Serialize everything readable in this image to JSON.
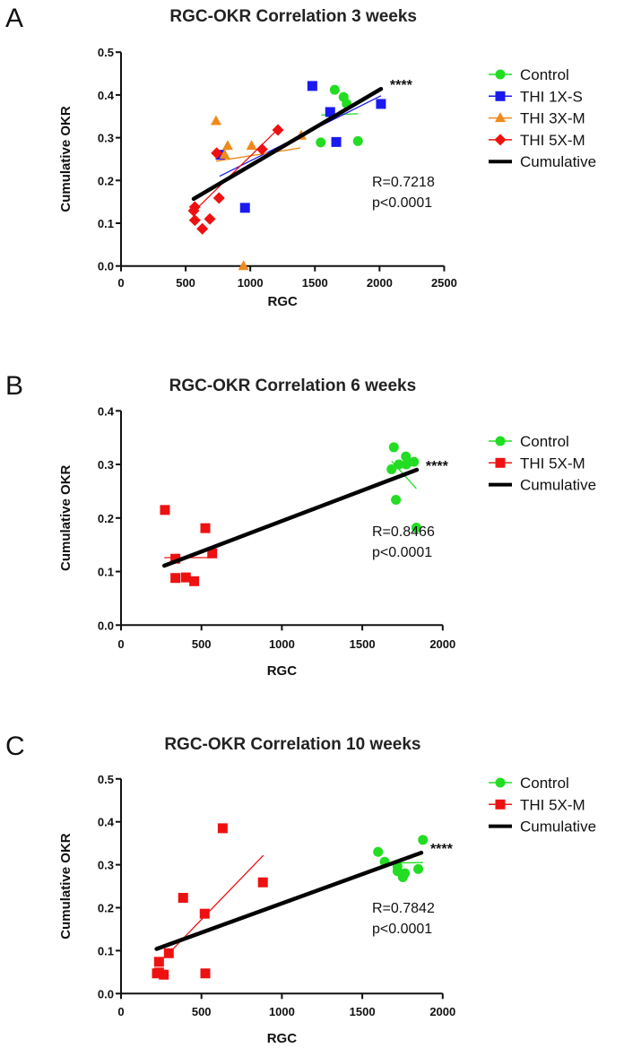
{
  "chart_data": [
    {
      "type": "scatter",
      "panel_label": "A",
      "title": "RGC-OKR Correlation 3 weeks",
      "xlabel": "RGC",
      "ylabel": "Cumulative OKR",
      "xlim": [
        0,
        2500
      ],
      "ylim": [
        0,
        0.5
      ],
      "xticks": [
        "0",
        "500",
        "1000",
        "1500",
        "2000",
        "2500"
      ],
      "yticks": [
        "0.0",
        "0.1",
        "0.2",
        "0.3",
        "0.4",
        "0.5"
      ],
      "legend_position": "right",
      "grid": false,
      "annotation_r": "R=0.7218",
      "annotation_p": "p<0.0001",
      "significance": "****",
      "series": [
        {
          "name": "Control",
          "color": "#22dd22",
          "marker": "circle",
          "points": [
            [
              1653,
              0.412
            ],
            [
              1722,
              0.395
            ],
            [
              1746,
              0.379
            ],
            [
              1545,
              0.289
            ],
            [
              1833,
              0.292
            ]
          ],
          "fit": [
            [
              1549,
              0.353
            ],
            [
              1833,
              0.356
            ]
          ]
        },
        {
          "name": "THI 1X-S",
          "color": "#1a1aee",
          "marker": "square",
          "points": [
            [
              1480,
              0.421
            ],
            [
              1618,
              0.36
            ],
            [
              2011,
              0.379
            ],
            [
              1665,
              0.29
            ],
            [
              959,
              0.136
            ],
            [
              770,
              0.26
            ]
          ],
          "fit": [
            [
              763,
              0.21
            ],
            [
              2011,
              0.398
            ]
          ]
        },
        {
          "name": "THI 3X-M",
          "color": "#f08a1c",
          "marker": "triangle",
          "points": [
            [
              735,
              0.339
            ],
            [
              825,
              0.281
            ],
            [
              1010,
              0.281
            ],
            [
              802,
              0.26
            ],
            [
              1394,
              0.305
            ],
            [
              948,
              0.0
            ]
          ],
          "fit": [
            [
              735,
              0.245
            ],
            [
              1387,
              0.276
            ]
          ]
        },
        {
          "name": "THI 5X-M",
          "color": "#ee1111",
          "marker": "diamond",
          "points": [
            [
              740,
              0.264
            ],
            [
              1091,
              0.273
            ],
            [
              1214,
              0.318
            ],
            [
              758,
              0.159
            ],
            [
              571,
              0.138
            ],
            [
              562,
              0.129
            ],
            [
              571,
              0.107
            ],
            [
              687,
              0.11
            ],
            [
              629,
              0.087
            ]
          ],
          "fit": [
            [
              571,
              0.13
            ],
            [
              1214,
              0.32
            ]
          ]
        }
      ],
      "cumulative": {
        "name": "Cumulative",
        "color": "#000000",
        "fit": [
          [
            562,
            0.157
          ],
          [
            2011,
            0.414
          ]
        ]
      }
    },
    {
      "type": "scatter",
      "panel_label": "B",
      "title": "RGC-OKR Correlation 6 weeks",
      "xlabel": "RGC",
      "ylabel": "Cumulative OKR",
      "xlim": [
        0,
        2000
      ],
      "ylim": [
        0,
        0.4
      ],
      "xticks": [
        "0",
        "500",
        "1000",
        "1500",
        "2000"
      ],
      "yticks": [
        "0.0",
        "0.1",
        "0.2",
        "0.3",
        "0.4"
      ],
      "legend_position": "right",
      "grid": false,
      "annotation_r": "R=0.8466",
      "annotation_p": "p<0.0001",
      "significance": "****",
      "series": [
        {
          "name": "Control",
          "color": "#22dd22",
          "marker": "circle",
          "points": [
            [
              1696,
              0.332
            ],
            [
              1771,
              0.315
            ],
            [
              1821,
              0.305
            ],
            [
              1728,
              0.3
            ],
            [
              1774,
              0.3
            ],
            [
              1682,
              0.291
            ],
            [
              1709,
              0.234
            ],
            [
              1836,
              0.182
            ]
          ],
          "fit": [
            [
              1682,
              0.306
            ],
            [
              1836,
              0.255
            ]
          ]
        },
        {
          "name": "THI 5X-M",
          "color": "#ee1111",
          "marker": "square",
          "points": [
            [
              273,
              0.215
            ],
            [
              524,
              0.181
            ],
            [
              567,
              0.134
            ],
            [
              338,
              0.124
            ],
            [
              338,
              0.088
            ],
            [
              403,
              0.089
            ],
            [
              455,
              0.082
            ]
          ],
          "fit": [
            [
              269,
              0.126
            ],
            [
              560,
              0.126
            ]
          ]
        }
      ],
      "cumulative": {
        "name": "Cumulative",
        "color": "#000000",
        "fit": [
          [
            269,
            0.111
          ],
          [
            1839,
            0.29
          ]
        ]
      }
    },
    {
      "type": "scatter",
      "panel_label": "C",
      "title": "RGC-OKR Correlation 10 weeks",
      "xlabel": "RGC",
      "ylabel": "Cumulative OKR",
      "xlim": [
        0,
        2000
      ],
      "ylim": [
        0,
        0.5
      ],
      "xticks": [
        "0",
        "500",
        "1000",
        "1500",
        "2000"
      ],
      "yticks": [
        "0.0",
        "0.1",
        "0.2",
        "0.3",
        "0.4",
        "0.5"
      ],
      "legend_position": "right",
      "grid": false,
      "annotation_r": "R=0.7842",
      "annotation_p": "p<0.0001",
      "significance": "****",
      "series": [
        {
          "name": "Control",
          "color": "#22dd22",
          "marker": "circle",
          "points": [
            [
              1877,
              0.358
            ],
            [
              1598,
              0.33
            ],
            [
              1639,
              0.307
            ],
            [
              1719,
              0.296
            ],
            [
              1719,
              0.285
            ],
            [
              1765,
              0.28
            ],
            [
              1752,
              0.271
            ],
            [
              1848,
              0.29
            ]
          ],
          "fit": [
            [
              1644,
              0.304
            ],
            [
              1877,
              0.305
            ]
          ]
        },
        {
          "name": "THI 5X-M",
          "color": "#ee1111",
          "marker": "square",
          "points": [
            [
              632,
              0.385
            ],
            [
              882,
              0.259
            ],
            [
              386,
              0.223
            ],
            [
              520,
              0.186
            ],
            [
              297,
              0.094
            ],
            [
              236,
              0.074
            ],
            [
              223,
              0.047
            ],
            [
              266,
              0.044
            ],
            [
              524,
              0.047
            ],
            [
              236,
              0.049
            ]
          ],
          "fit": [
            [
              316,
              0.101
            ],
            [
              885,
              0.322
            ]
          ]
        }
      ],
      "cumulative": {
        "name": "Cumulative",
        "color": "#000000",
        "fit": [
          [
            221,
            0.104
          ],
          [
            1867,
            0.328
          ]
        ]
      }
    }
  ]
}
